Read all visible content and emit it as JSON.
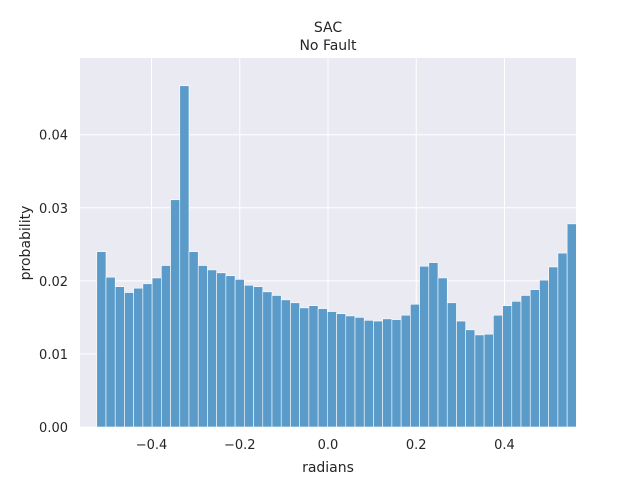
{
  "chart_data": {
    "type": "bar",
    "title": "SAC",
    "subtitle": "No Fault",
    "xlabel": "radians",
    "ylabel": "probability",
    "xlim": [
      -0.562,
      0.562
    ],
    "ylim": [
      0,
      0.0505
    ],
    "grid": true,
    "bin_start": -0.524,
    "bin_width": 0.0209,
    "values": [
      0.024,
      0.0205,
      0.0192,
      0.0184,
      0.019,
      0.0196,
      0.0204,
      0.0221,
      0.0311,
      0.0467,
      0.024,
      0.0221,
      0.0215,
      0.0211,
      0.0207,
      0.0202,
      0.0194,
      0.0192,
      0.0185,
      0.018,
      0.0174,
      0.017,
      0.0163,
      0.0166,
      0.0162,
      0.0158,
      0.0155,
      0.0152,
      0.015,
      0.0146,
      0.0145,
      0.0148,
      0.0147,
      0.0153,
      0.0168,
      0.022,
      0.0225,
      0.0204,
      0.017,
      0.0145,
      0.0133,
      0.0126,
      0.0127,
      0.0153,
      0.0166,
      0.0172,
      0.018,
      0.0188,
      0.0201,
      0.0219,
      0.0238,
      0.0278
    ],
    "xticks": [
      -0.4,
      -0.2,
      0.0,
      0.2,
      0.4
    ],
    "xtick_labels": [
      "−0.4",
      "−0.2",
      "0.0",
      "0.2",
      "0.4"
    ],
    "yticks": [
      0.0,
      0.01,
      0.02,
      0.03,
      0.04
    ],
    "ytick_labels": [
      "0.00",
      "0.01",
      "0.02",
      "0.03",
      "0.04"
    ],
    "colors": {
      "bar": "#5a9bc9",
      "bar_edge": "#ffffff",
      "plot_bg": "#eaeaf2",
      "grid": "#ffffff",
      "text": "#262626"
    }
  }
}
